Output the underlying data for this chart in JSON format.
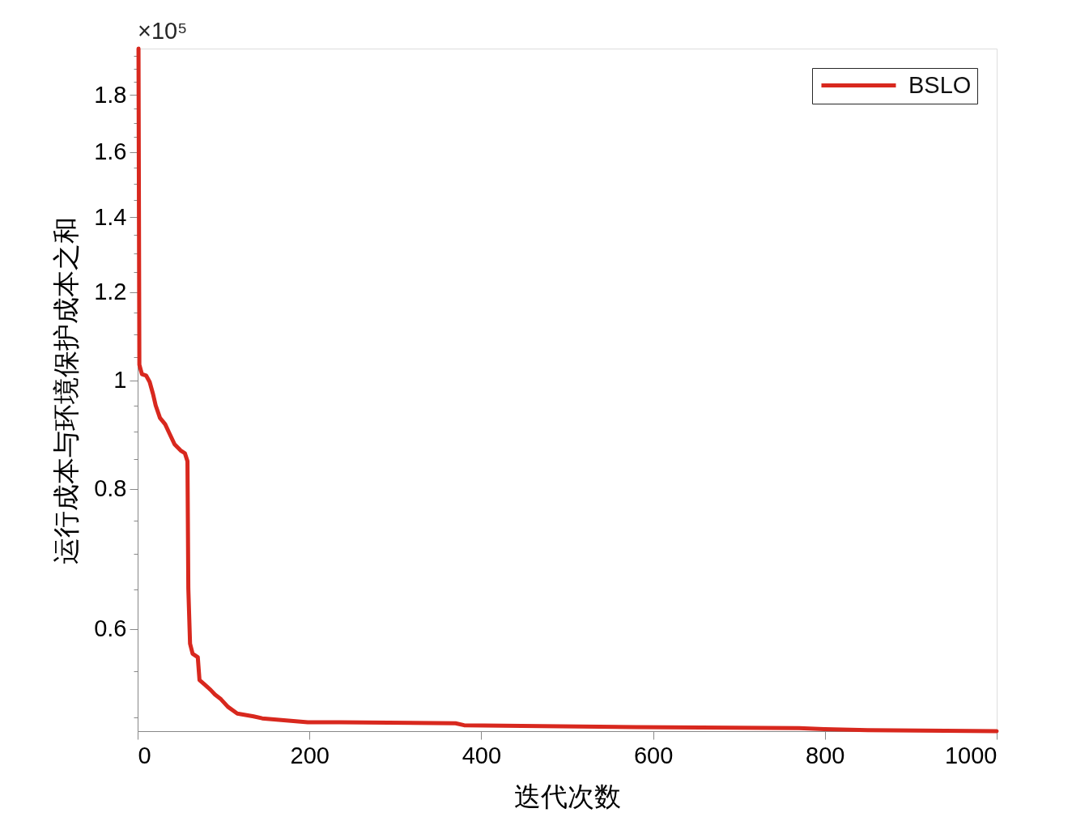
{
  "chart_data": {
    "type": "line",
    "xlabel": "迭代次数",
    "ylabel": "运行成本与环境保护成本之和",
    "annotations": [
      "×10⁵"
    ],
    "x": [
      1,
      2,
      5,
      10,
      14,
      18,
      21,
      26,
      32,
      37,
      43,
      50,
      55,
      58,
      59,
      61,
      64,
      70,
      72,
      78,
      85,
      90,
      97,
      105,
      116,
      135,
      145,
      170,
      198,
      235,
      370,
      380,
      580,
      770,
      800,
      850,
      1000
    ],
    "series": [
      {
        "name": "BSLO",
        "color": "#d8281e",
        "values": [
          1.98,
          1.033,
          1.013,
          1.01,
          0.997,
          0.972,
          0.95,
          0.926,
          0.914,
          0.897,
          0.877,
          0.866,
          0.861,
          0.847,
          0.652,
          0.582,
          0.57,
          0.566,
          0.54,
          0.535,
          0.529,
          0.524,
          0.519,
          0.511,
          0.504,
          0.501,
          0.499,
          0.497,
          0.495,
          0.495,
          0.494,
          0.492,
          0.49,
          0.489,
          0.488,
          0.487,
          0.486
        ]
      }
    ],
    "xlim": [
      0,
      1000
    ],
    "xticks": [
      0,
      200,
      400,
      600,
      800,
      1000
    ],
    "ylim": [
      0.486,
      1.98
    ],
    "yticks": [
      {
        "value": 0.5,
        "label": null
      },
      {
        "value": 0.55,
        "label": null
      },
      0.6,
      {
        "value": 0.65,
        "label": null
      },
      {
        "value": 0.7,
        "label": null
      },
      {
        "value": 0.75,
        "label": null
      },
      0.8,
      {
        "value": 0.85,
        "label": null
      },
      {
        "value": 0.9,
        "label": null
      },
      {
        "value": 0.95,
        "label": null
      },
      1,
      {
        "value": 1.05,
        "label": null
      },
      {
        "value": 1.1,
        "label": null
      },
      {
        "value": 1.15,
        "label": null
      },
      1.2,
      {
        "value": 1.25,
        "label": null
      },
      {
        "value": 1.3,
        "label": null
      },
      {
        "value": 1.35,
        "label": null
      },
      1.4,
      {
        "value": 1.45,
        "label": null
      },
      {
        "value": 1.5,
        "label": null
      },
      {
        "value": 1.55,
        "label": null
      },
      1.6,
      {
        "value": 1.65,
        "label": null
      },
      {
        "value": 1.7,
        "label": null
      },
      {
        "value": 1.75,
        "label": null
      },
      1.8,
      {
        "value": 1.85,
        "label": null
      },
      {
        "value": 1.9,
        "label": null
      },
      {
        "value": 1.95,
        "label": null
      }
    ],
    "log": "y",
    "grid": false,
    "legend": "top right",
    "line_style": "solid"
  }
}
